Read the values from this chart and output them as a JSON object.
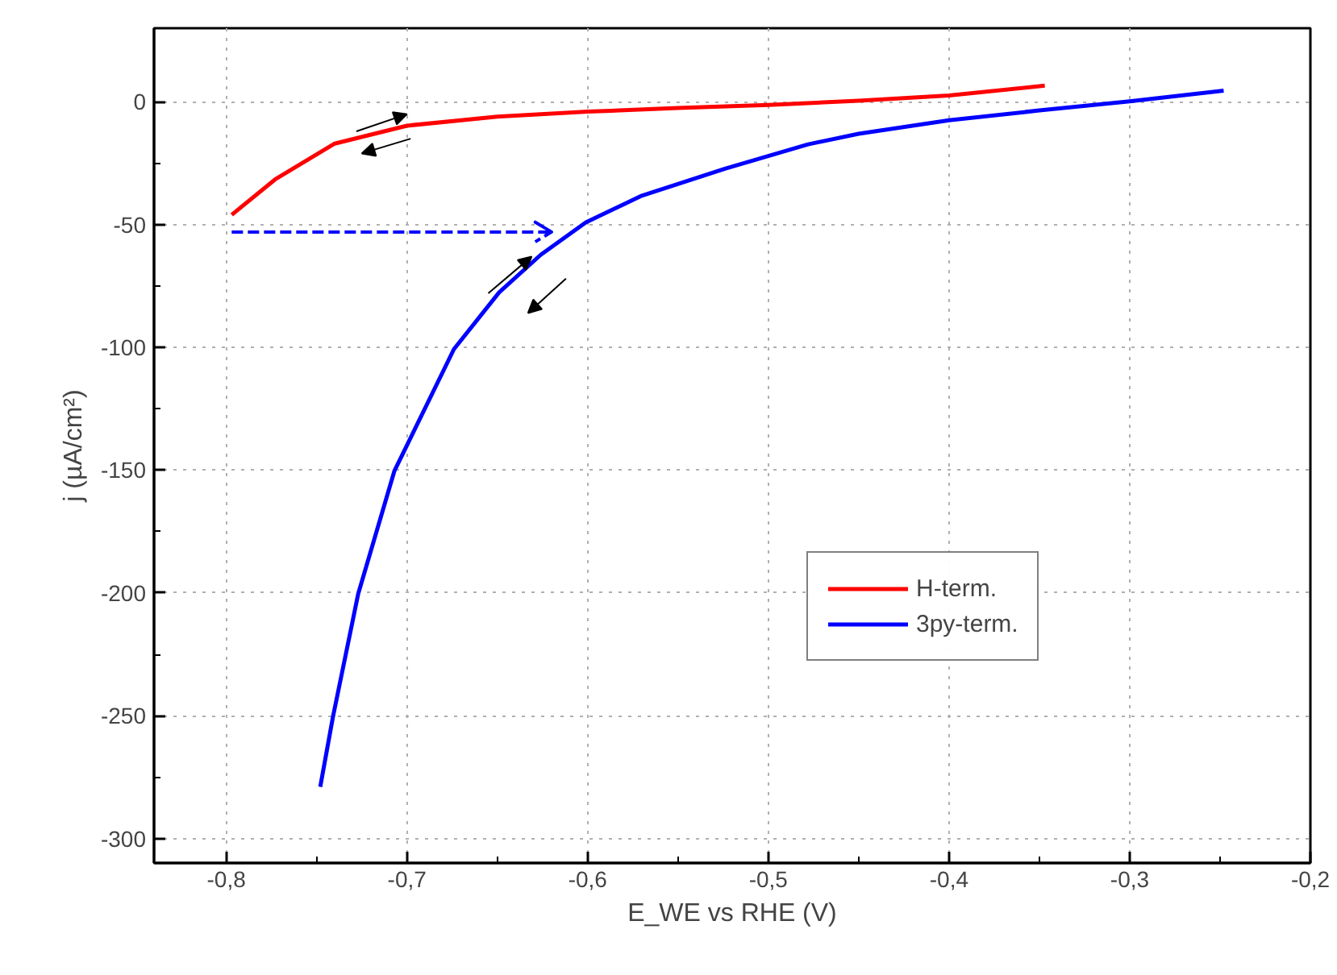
{
  "chart_data": {
    "type": "line",
    "xlabel": "E_WE vs RHE (V)",
    "ylabel": "j (µA/cm²)",
    "xlim": [
      -0.84,
      -0.2
    ],
    "ylim": [
      -310,
      30
    ],
    "xticks": [
      {
        "value": -0.8,
        "label": "-0,8"
      },
      {
        "value": -0.7,
        "label": "-0,7"
      },
      {
        "value": -0.6,
        "label": "-0,6"
      },
      {
        "value": -0.5,
        "label": "-0,5"
      },
      {
        "value": -0.4,
        "label": "-0,4"
      },
      {
        "value": -0.3,
        "label": "-0,3"
      },
      {
        "value": -0.2,
        "label": "-0,2"
      }
    ],
    "yticks": [
      -300,
      -250,
      -200,
      -150,
      -100,
      -50,
      0
    ],
    "grid": true,
    "legend": "bottom right",
    "line_style": "solid",
    "marker": "none",
    "series": [
      {
        "name": "H-term.",
        "color": "#ff0000",
        "x": [
          -0.797,
          -0.773,
          -0.74,
          -0.7,
          -0.65,
          -0.6,
          -0.55,
          -0.5,
          -0.45,
          -0.4,
          -0.347
        ],
        "values": [
          -46,
          -31.6,
          -17,
          -9.7,
          -6,
          -4,
          -2.5,
          -1.3,
          0.5,
          2.6,
          6.6
        ]
      },
      {
        "name": "3py-term.",
        "color": "#0000ff",
        "x": [
          -0.748,
          -0.741,
          -0.727,
          -0.707,
          -0.674,
          -0.649,
          -0.626,
          -0.601,
          -0.57,
          -0.524,
          -0.478,
          -0.45,
          -0.4,
          -0.35,
          -0.3,
          -0.248
        ],
        "values": [
          -279,
          -250.6,
          -200.4,
          -150.4,
          -100.7,
          -77.6,
          -62.3,
          -49.1,
          -38.2,
          -27.2,
          -17.3,
          -13,
          -7.5,
          -3.5,
          0.2,
          4.6
        ]
      },
      {
        "type": "line",
        "color": "#0000ff",
        "line_style": "dashed",
        "x": [
          -0.797,
          -0.62,
          -0.629,
          -0.62,
          -0.629
        ],
        "values": [
          -53,
          -53,
          -49,
          -53,
          -57
        ]
      }
    ]
  }
}
